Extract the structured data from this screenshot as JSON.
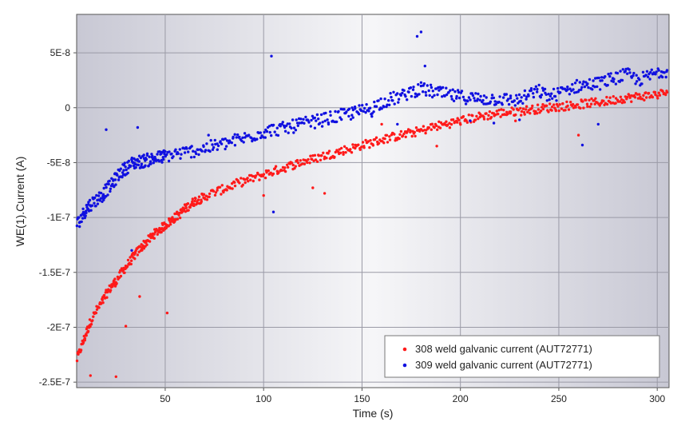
{
  "chart_data": {
    "type": "scatter",
    "xlabel": "Time (s)",
    "ylabel": "WE(1).Current (A)",
    "xlim": [
      5,
      306
    ],
    "ylim": [
      -2.55e-07,
      8.5e-08
    ],
    "x_ticks": [
      50,
      100,
      150,
      200,
      250,
      300
    ],
    "x_tick_labels": [
      "50",
      "100",
      "150",
      "200",
      "250",
      "300"
    ],
    "y_ticks": [
      5e-08,
      0,
      -5e-08,
      -1e-07,
      -1.5e-07,
      -2e-07,
      -2.5e-07
    ],
    "y_tick_labels": [
      "5E-8",
      "0",
      "-5E-8",
      "-1E-7",
      "-1.5E-7",
      "-2E-7",
      "-2.5E-7"
    ],
    "grid": true,
    "legend_position": "bottom-right",
    "series": [
      {
        "name": "308 weld galvanic current (AUT72771)",
        "color": "#ff1a1a",
        "x": [
          5,
          8,
          10,
          12,
          15,
          18,
          20,
          23,
          25,
          28,
          30,
          33,
          35,
          38,
          40,
          43,
          45,
          48,
          50,
          53,
          55,
          58,
          60,
          63,
          65,
          68,
          70,
          75,
          80,
          85,
          90,
          95,
          100,
          105,
          110,
          115,
          120,
          125,
          130,
          135,
          140,
          145,
          150,
          155,
          160,
          165,
          170,
          175,
          180,
          185,
          190,
          195,
          200,
          205,
          210,
          215,
          220,
          225,
          230,
          235,
          240,
          245,
          250,
          255,
          260,
          265,
          270,
          275,
          280,
          285,
          290,
          295,
          300,
          305
        ],
        "y": [
          -2.3e-07,
          -2.15e-07,
          -2.05e-07,
          -1.95e-07,
          -1.85e-07,
          -1.77e-07,
          -1.7e-07,
          -1.62e-07,
          -1.58e-07,
          -1.5e-07,
          -1.45e-07,
          -1.38e-07,
          -1.33e-07,
          -1.27e-07,
          -1.23e-07,
          -1.18e-07,
          -1.14e-07,
          -1.1e-07,
          -1.07e-07,
          -1.03e-07,
          -1e-07,
          -9.6e-08,
          -9.2e-08,
          -8.8e-08,
          -8.5e-08,
          -8.3e-08,
          -8.1e-08,
          -7.7e-08,
          -7.4e-08,
          -7e-08,
          -6.7e-08,
          -6.4e-08,
          -6.1e-08,
          -5.8e-08,
          -5.5e-08,
          -5.2e-08,
          -4.9e-08,
          -4.7e-08,
          -4.4e-08,
          -4.2e-08,
          -3.9e-08,
          -3.7e-08,
          -3.4e-08,
          -3.2e-08,
          -2.9e-08,
          -2.7e-08,
          -2.5e-08,
          -2.3e-08,
          -2.1e-08,
          -1.8e-08,
          -1.6e-08,
          -1.4e-08,
          -1.2e-08,
          -1e-08,
          -8e-09,
          -6.5e-09,
          -5e-09,
          -4e-09,
          -3e-09,
          -2e-09,
          -1e-09,
          0.0,
          1e-09,
          2e-09,
          3e-09,
          4e-09,
          5e-09,
          6e-09,
          8e-09,
          9e-09,
          1e-08,
          1.1e-08,
          1.2e-08,
          1.4e-08
        ]
      },
      {
        "name": "309 weld galvanic current (AUT72771)",
        "color": "#1010e0",
        "x": [
          5,
          8,
          10,
          12,
          15,
          18,
          20,
          23,
          25,
          28,
          30,
          33,
          35,
          38,
          40,
          43,
          45,
          48,
          50,
          55,
          60,
          65,
          70,
          75,
          80,
          85,
          90,
          95,
          100,
          105,
          110,
          115,
          120,
          125,
          130,
          135,
          140,
          145,
          150,
          155,
          160,
          165,
          170,
          175,
          180,
          185,
          190,
          195,
          200,
          205,
          210,
          215,
          220,
          225,
          230,
          235,
          240,
          245,
          250,
          255,
          260,
          265,
          270,
          275,
          280,
          285,
          290,
          295,
          300,
          305
        ],
        "y": [
          -1.07e-07,
          -9.8e-08,
          -9.2e-08,
          -8.8e-08,
          -8.4e-08,
          -8e-08,
          -7.5e-08,
          -7e-08,
          -6.4e-08,
          -5.8e-08,
          -5.5e-08,
          -5.1e-08,
          -5e-08,
          -4.9e-08,
          -4.8e-08,
          -4.7e-08,
          -4.6e-08,
          -4.5e-08,
          -4.4e-08,
          -4.2e-08,
          -4.1e-08,
          -3.9e-08,
          -3.7e-08,
          -3.5e-08,
          -3.3e-08,
          -3e-08,
          -2.8e-08,
          -2.5e-08,
          -2.2e-08,
          -2e-08,
          -1.9e-08,
          -1.7e-08,
          -1.5e-08,
          -1.3e-08,
          -1.1e-08,
          -9e-09,
          -7e-09,
          -5e-09,
          -3e-09,
          0.0,
          5e-09,
          8e-09,
          1e-08,
          1.5e-08,
          1.7e-08,
          1.5e-08,
          1.3e-08,
          1.1e-08,
          1e-08,
          9e-09,
          8e-09,
          8e-09,
          8e-09,
          7e-09,
          7e-09,
          1.2e-08,
          1.5e-08,
          1e-08,
          1.3e-08,
          1.7e-08,
          2e-08,
          2.1e-08,
          2.2e-08,
          2.5e-08,
          2.8e-08,
          3e-08,
          2.5e-08,
          2.8e-08,
          3.2e-08,
          3.4e-08
        ],
        "outliers_x": [
          20,
          33,
          36,
          72,
          104,
          105,
          118,
          145,
          155,
          168,
          178,
          180,
          182,
          205,
          217,
          230,
          262,
          270
        ],
        "outliers_y": [
          -2e-08,
          -1.3e-07,
          -1.8e-08,
          -2.5e-08,
          4.7e-08,
          -9.5e-08,
          -1e-08,
          0.0,
          -8e-09,
          -1.5e-08,
          6.5e-08,
          6.9e-08,
          3.8e-08,
          -1.2e-08,
          -1.4e-08,
          -1.1e-08,
          -3.4e-08,
          -1.5e-08
        ]
      }
    ],
    "red_outliers_x": [
      12,
      25,
      30,
      37,
      51,
      100,
      125,
      131,
      160,
      188,
      228,
      260
    ],
    "red_outliers_y": [
      -2.44e-07,
      -2.45e-07,
      -1.99e-07,
      -1.72e-07,
      -1.87e-07,
      -8e-08,
      -7.3e-08,
      -7.8e-08,
      -1.5e-08,
      -3.5e-08,
      -1.2e-08,
      -2.5e-08
    ]
  }
}
